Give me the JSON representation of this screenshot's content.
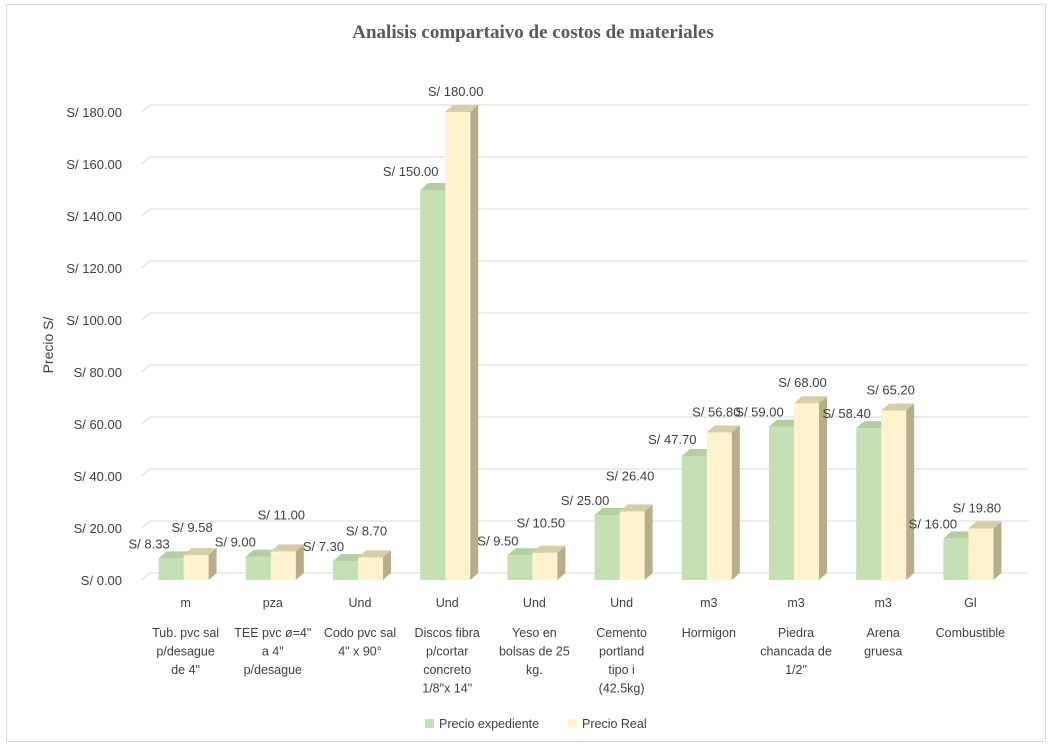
{
  "colors": {
    "series1_front": "#c5e0b4",
    "series1_top": "#b3cea2",
    "series1_side": "#9fb390",
    "series2_front": "#fff2cc",
    "series2_top": "#d6cda9",
    "series2_side": "#b8ad8a",
    "gridline": "#d9d9d9",
    "text": "#404040"
  },
  "chart_data": {
    "type": "bar",
    "style": "3d-clustered-column",
    "title": "Analisis compartaivo de costos de materiales",
    "ylabel": "Precio S/",
    "xlabel": "",
    "ylim": [
      0,
      180
    ],
    "y_ticks": [
      "S/ 0.00",
      "S/ 20.00",
      "S/ 40.00",
      "S/ 60.00",
      "S/ 80.00",
      "S/ 100.00",
      "S/ 120.00",
      "S/ 140.00",
      "S/ 160.00",
      "S/ 180.00"
    ],
    "grid": true,
    "legend_position": "bottom",
    "units": [
      "m",
      "pza",
      "Und",
      "Und",
      "Und",
      "Und",
      "m3",
      "m3",
      "m3",
      "Gl"
    ],
    "categories": [
      [
        "Tub. pvc sal",
        "p/desague",
        "de 4\""
      ],
      [
        "TEE pvc ø=4\"",
        "a 4\"",
        "p/desague"
      ],
      [
        "Codo pvc sal",
        "4\" x 90°"
      ],
      [
        "Discos fibra",
        "p/cortar",
        "concreto",
        "1/8\"x 14\""
      ],
      [
        "Yeso en",
        "bolsas de 25",
        "kg."
      ],
      [
        "Cemento",
        "portland",
        "tipo i",
        "(42.5kg)"
      ],
      [
        "Hormigon"
      ],
      [
        "Piedra",
        "chancada de",
        "1/2\""
      ],
      [
        "Arena",
        "gruesa"
      ],
      [
        "Combustible"
      ]
    ],
    "series": [
      {
        "name": "Precio expediente",
        "values": [
          8.33,
          9.0,
          7.3,
          150.0,
          9.5,
          25.0,
          47.7,
          59.0,
          58.4,
          16.0
        ],
        "labels": [
          "S/ 8.33",
          "S/ 9.00",
          "S/ 7.30",
          "S/ 150.00",
          "S/ 9.50",
          "S/ 25.00",
          "S/ 47.70",
          "S/ 59.00",
          "S/ 58.40",
          "S/ 16.00"
        ]
      },
      {
        "name": "Precio Real",
        "values": [
          9.58,
          11.0,
          8.7,
          180.0,
          10.5,
          26.4,
          56.8,
          68.0,
          65.2,
          19.8
        ],
        "labels": [
          "S/ 9.58",
          "S/ 11.00",
          "S/ 8.70",
          "S/ 180.00",
          "S/ 10.50",
          "S/ 26.40",
          "S/ 56.80",
          "S/ 68.00",
          "S/ 65.20",
          "S/ 19.80"
        ]
      }
    ]
  }
}
